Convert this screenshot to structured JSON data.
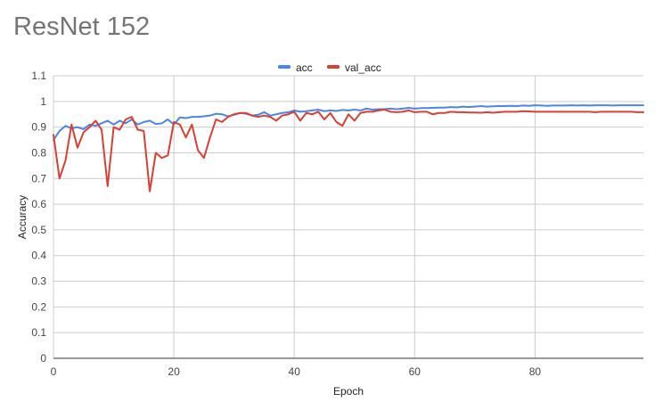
{
  "chart_data": {
    "type": "line",
    "title": "ResNet 152",
    "xlabel": "Epoch",
    "ylabel": "Accuracy",
    "xlim": [
      0,
      98
    ],
    "ylim": [
      0,
      1.1
    ],
    "x_ticks": [
      0,
      20,
      40,
      60,
      80
    ],
    "y_ticks": [
      0,
      0.1,
      0.2,
      0.3,
      0.4,
      0.5,
      0.6,
      0.7,
      0.8,
      0.9,
      1,
      1.1
    ],
    "grid": true,
    "legend_position": "top",
    "series": [
      {
        "name": "acc",
        "color": "#4a86e8",
        "values": [
          0.85,
          0.885,
          0.905,
          0.895,
          0.9,
          0.892,
          0.91,
          0.905,
          0.915,
          0.925,
          0.91,
          0.925,
          0.915,
          0.93,
          0.91,
          0.92,
          0.925,
          0.912,
          0.915,
          0.93,
          0.91,
          0.938,
          0.935,
          0.94,
          0.94,
          0.942,
          0.945,
          0.952,
          0.95,
          0.942,
          0.948,
          0.955,
          0.952,
          0.945,
          0.948,
          0.958,
          0.945,
          0.95,
          0.955,
          0.958,
          0.965,
          0.96,
          0.962,
          0.965,
          0.968,
          0.962,
          0.965,
          0.963,
          0.967,
          0.965,
          0.968,
          0.965,
          0.972,
          0.968,
          0.97,
          0.97,
          0.972,
          0.97,
          0.972,
          0.975,
          0.972,
          0.974,
          0.974,
          0.975,
          0.976,
          0.976,
          0.978,
          0.977,
          0.98,
          0.978,
          0.98,
          0.982,
          0.98,
          0.981,
          0.982,
          0.982,
          0.983,
          0.982,
          0.984,
          0.983,
          0.985,
          0.984,
          0.983,
          0.984,
          0.984,
          0.984,
          0.985,
          0.984,
          0.985,
          0.984,
          0.985,
          0.985,
          0.985,
          0.984,
          0.985,
          0.985,
          0.985,
          0.985,
          0.985
        ]
      },
      {
        "name": "val_acc",
        "color": "#d93f33",
        "values": [
          0.87,
          0.7,
          0.77,
          0.91,
          0.82,
          0.88,
          0.9,
          0.925,
          0.89,
          0.67,
          0.9,
          0.89,
          0.93,
          0.94,
          0.89,
          0.885,
          0.65,
          0.8,
          0.78,
          0.79,
          0.92,
          0.91,
          0.86,
          0.91,
          0.81,
          0.78,
          0.86,
          0.93,
          0.92,
          0.94,
          0.95,
          0.955,
          0.955,
          0.945,
          0.94,
          0.945,
          0.94,
          0.925,
          0.945,
          0.95,
          0.96,
          0.925,
          0.955,
          0.95,
          0.96,
          0.93,
          0.955,
          0.92,
          0.905,
          0.95,
          0.925,
          0.955,
          0.96,
          0.96,
          0.965,
          0.968,
          0.96,
          0.958,
          0.96,
          0.965,
          0.958,
          0.96,
          0.96,
          0.95,
          0.955,
          0.955,
          0.96,
          0.958,
          0.958,
          0.957,
          0.957,
          0.956,
          0.958,
          0.956,
          0.958,
          0.96,
          0.96,
          0.96,
          0.962,
          0.961,
          0.96,
          0.96,
          0.96,
          0.96,
          0.96,
          0.96,
          0.96,
          0.96,
          0.96,
          0.96,
          0.958,
          0.96,
          0.96,
          0.96,
          0.96,
          0.96,
          0.96,
          0.958,
          0.958
        ]
      }
    ]
  }
}
